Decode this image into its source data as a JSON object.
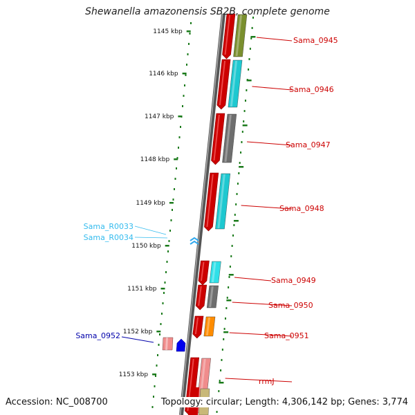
{
  "title": "Shewanella amazonensis SB2B, complete genome",
  "footer": {
    "accession": "Accession: NC_008700",
    "summary": "Topology: circular; Length: 4,306,142 bp; Genes: 3,774"
  },
  "ticks": [
    "1145 kbp",
    "1146 kbp",
    "1147 kbp",
    "1148 kbp",
    "1149 kbp",
    "1150 kbp",
    "1151 kbp",
    "1152 kbp",
    "1153 kbp"
  ],
  "genes": [
    {
      "label": "Sama_0945",
      "color": "#cc0000",
      "block": "#7a8f2e"
    },
    {
      "label": "Sama_0946",
      "color": "#cc0000",
      "block": "#1ec8d0"
    },
    {
      "label": "Sama_0947",
      "color": "#cc0000",
      "block": "#6e6e6e"
    },
    {
      "label": "Sama_0948",
      "color": "#cc0000",
      "block": "#1ec8d0"
    },
    {
      "label": "Sama_0949",
      "color": "#cc0000",
      "block": "#2fe0e8"
    },
    {
      "label": "Sama_0950",
      "color": "#cc0000",
      "block": "#6e6e6e"
    },
    {
      "label": "Sama_0951",
      "color": "#cc0000",
      "block": "#ff8c00"
    },
    {
      "label": "rrmJ",
      "color": "#cc0000",
      "block": "#f08c8c"
    }
  ],
  "rnas": [
    {
      "label": "Sama_R0033",
      "color": "#33bbee"
    },
    {
      "label": "Sama_R0034",
      "color": "#33bbee"
    }
  ],
  "reverse_gene": {
    "label": "Sama_0952",
    "color": "#0000aa"
  }
}
